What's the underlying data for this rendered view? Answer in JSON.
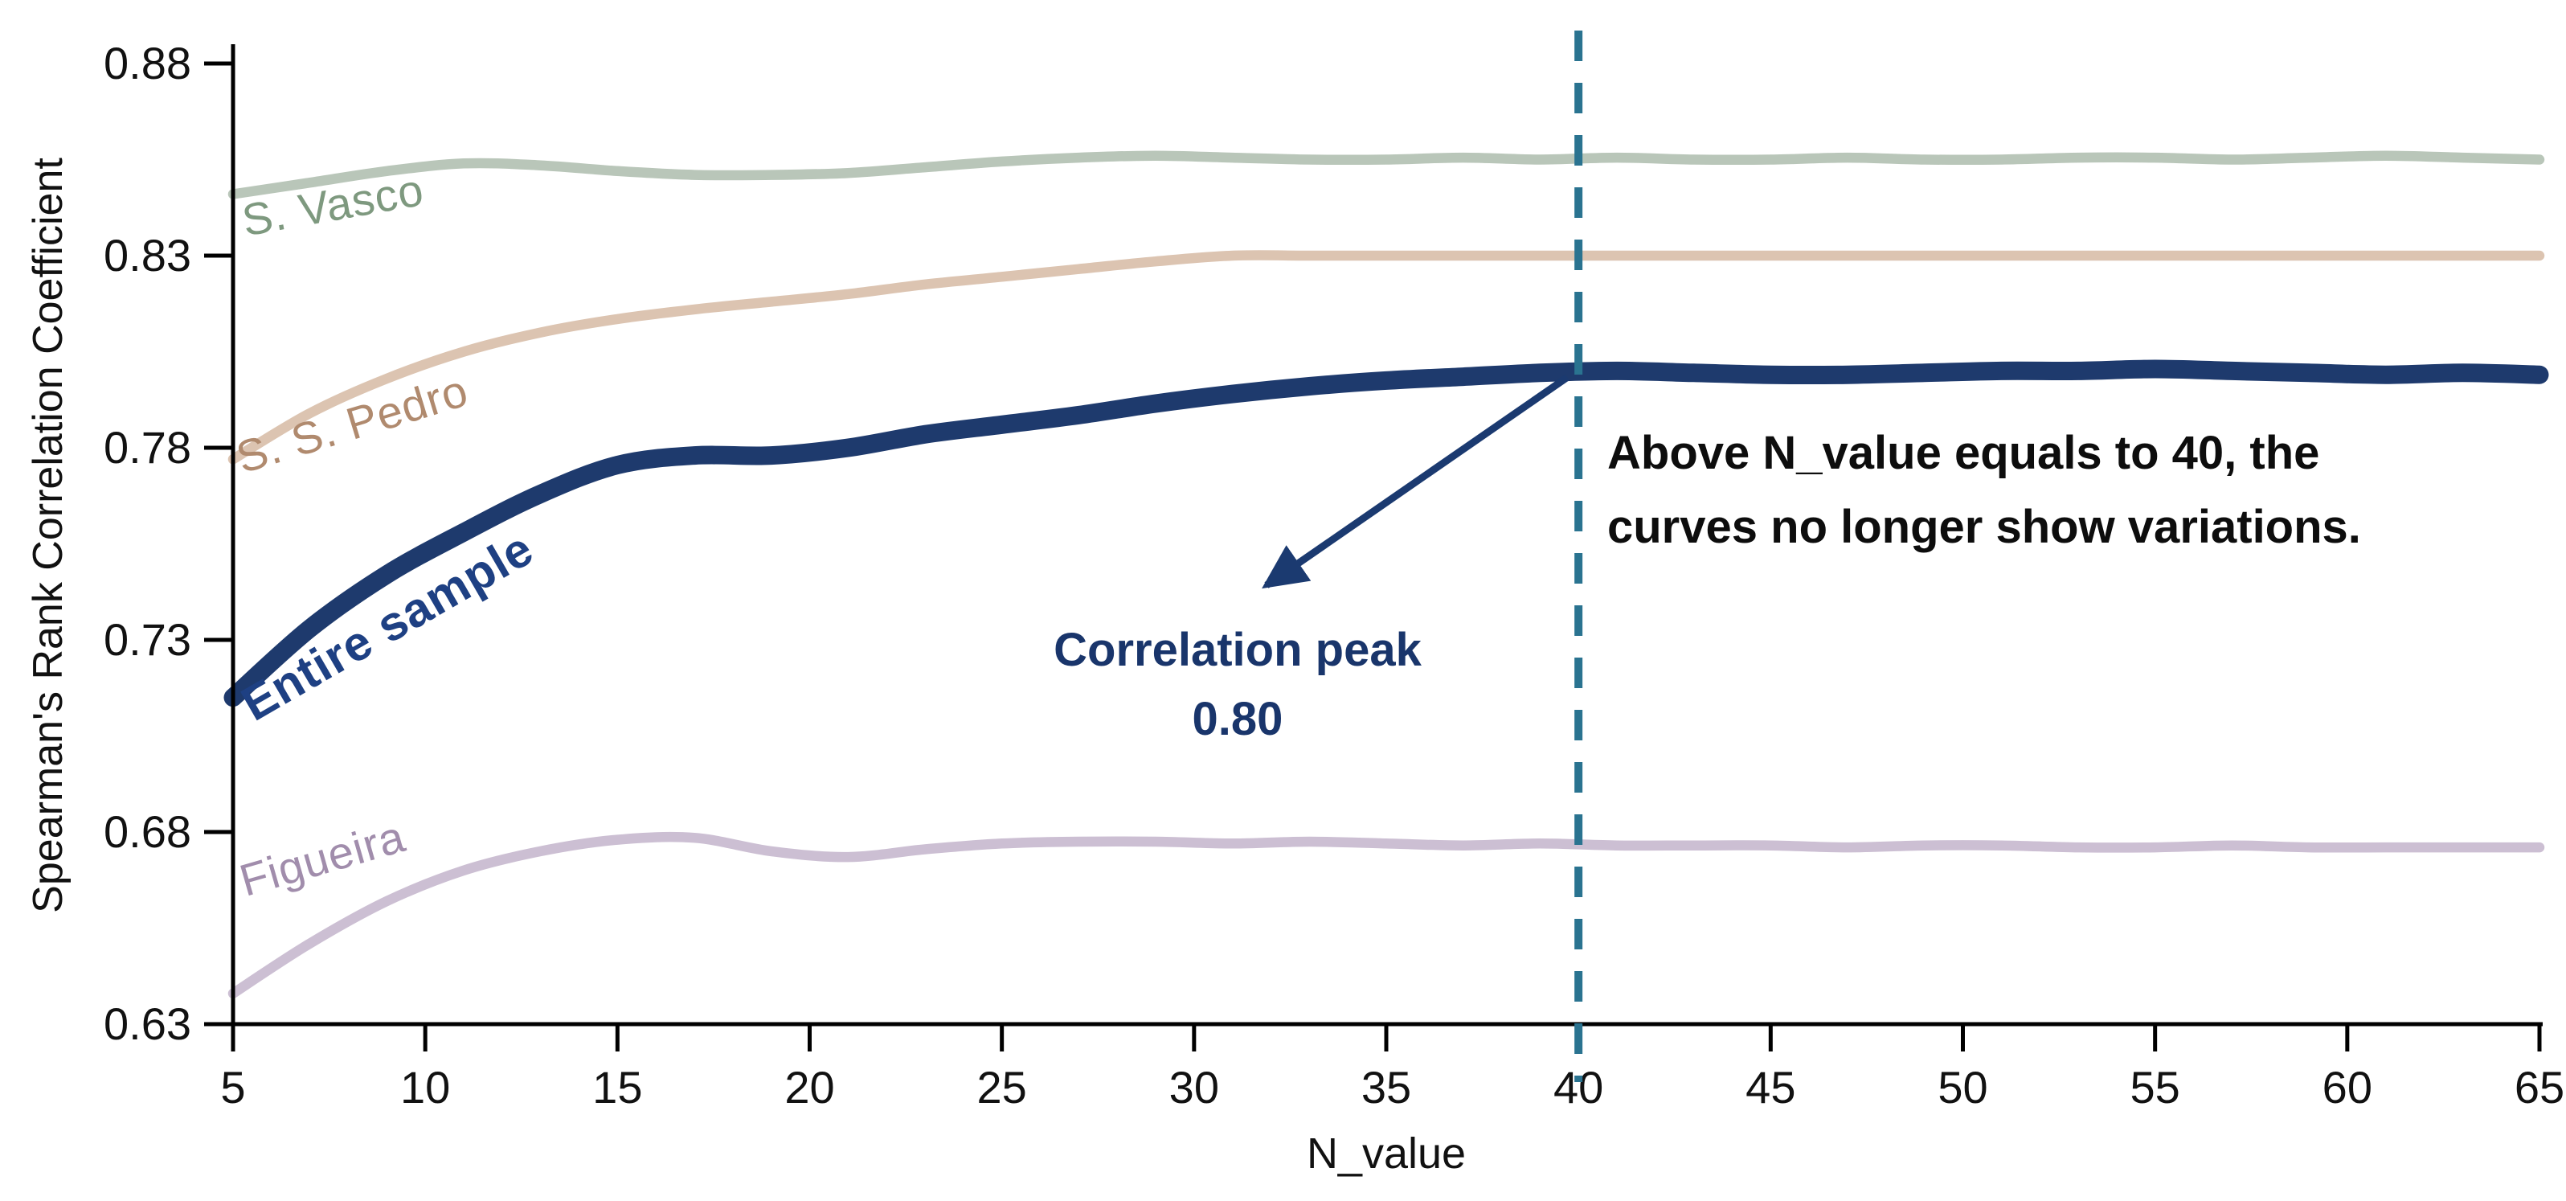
{
  "chart_data": {
    "type": "line",
    "title": "",
    "xlabel": "N_value",
    "ylabel": "Spearman's Rank Correlation Coefficient",
    "xlim": [
      5,
      65
    ],
    "ylim": [
      0.63,
      0.88
    ],
    "grid": false,
    "legend_position": "inline-curve-labels",
    "xticks": [
      5,
      10,
      15,
      20,
      25,
      30,
      35,
      40,
      45,
      50,
      55,
      60,
      65
    ],
    "yticks": [
      "0.88",
      "0.83",
      "0.78",
      "0.73",
      "0.68",
      "0.63"
    ],
    "x": [
      5,
      7,
      9,
      11,
      13,
      15,
      17,
      19,
      21,
      23,
      25,
      27,
      29,
      31,
      33,
      35,
      37,
      39,
      41,
      43,
      45,
      47,
      49,
      51,
      53,
      55,
      57,
      59,
      61,
      63,
      65
    ],
    "series": [
      {
        "name": "S. Vasco",
        "color": "#b9c6b9",
        "label_color": "#7e997f",
        "line_width": 12.5,
        "values": [
          0.846,
          0.849,
          0.852,
          0.854,
          0.8535,
          0.852,
          0.851,
          0.851,
          0.8515,
          0.853,
          0.8545,
          0.8555,
          0.856,
          0.8555,
          0.855,
          0.855,
          0.8555,
          0.855,
          0.8555,
          0.855,
          0.855,
          0.8555,
          0.855,
          0.855,
          0.8555,
          0.8555,
          0.855,
          0.8555,
          0.856,
          0.8555,
          0.855
        ]
      },
      {
        "name": "S. S. Pedro",
        "color": "#dcc4b1",
        "label_color": "#b08a6e",
        "line_width": 12.5,
        "values": [
          0.777,
          0.789,
          0.798,
          0.805,
          0.81,
          0.8135,
          0.816,
          0.818,
          0.82,
          0.8225,
          0.8245,
          0.8265,
          0.8285,
          0.83,
          0.83,
          0.83,
          0.83,
          0.83,
          0.83,
          0.83,
          0.83,
          0.83,
          0.83,
          0.83,
          0.83,
          0.83,
          0.83,
          0.83,
          0.83,
          0.83,
          0.83
        ]
      },
      {
        "name": "Entire sample",
        "color": "#1e3a6d",
        "label_color": "#1e4083",
        "line_width": 23,
        "values": [
          0.715,
          0.733,
          0.747,
          0.758,
          0.768,
          0.7755,
          0.778,
          0.778,
          0.78,
          0.7835,
          0.786,
          0.7885,
          0.7915,
          0.794,
          0.796,
          0.7975,
          0.7985,
          0.7995,
          0.8,
          0.7995,
          0.799,
          0.799,
          0.7995,
          0.8,
          0.8,
          0.8005,
          0.8,
          0.7995,
          0.799,
          0.7995,
          0.799
        ]
      },
      {
        "name": "Figueira",
        "color": "#ccbfd3",
        "label_color": "#a18dac",
        "line_width": 12.5,
        "values": [
          0.638,
          0.651,
          0.662,
          0.67,
          0.675,
          0.678,
          0.6785,
          0.675,
          0.6735,
          0.6755,
          0.677,
          0.6775,
          0.6775,
          0.677,
          0.6775,
          0.677,
          0.6765,
          0.677,
          0.6765,
          0.6765,
          0.6765,
          0.676,
          0.6765,
          0.6765,
          0.676,
          0.676,
          0.6765,
          0.676,
          0.676,
          0.676,
          0.676
        ]
      }
    ],
    "vline": {
      "x": 40,
      "color": "#2a7390",
      "style": "dashed"
    },
    "annotations": {
      "peak": {
        "line1": "Correlation peak",
        "line2": "0.80",
        "color": "#19356b",
        "arrow_from_x": 40,
        "arrow_from_y": 0.8
      },
      "note": {
        "line1": "Above N_value equals to 40, the",
        "line2": "curves no longer show variations.",
        "color": "#0d0d0d"
      }
    },
    "axis_color": "#000000"
  }
}
